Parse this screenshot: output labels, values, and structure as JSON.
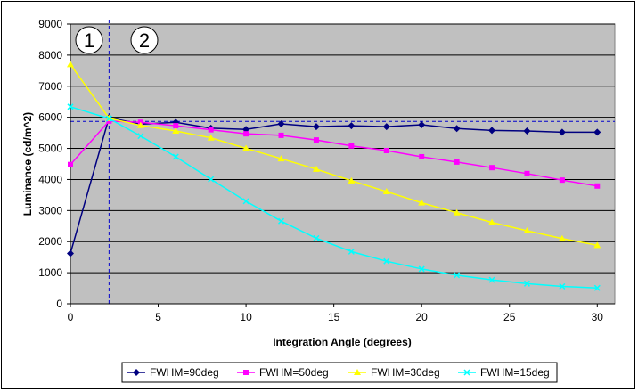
{
  "chart_data": {
    "type": "line",
    "title": "",
    "xlabel": "Integration Angle (degrees)",
    "ylabel": "Luminance (cd/m^2)",
    "xlim": [
      0,
      31
    ],
    "ylim": [
      0,
      9000
    ],
    "xticks": [
      0,
      5,
      10,
      15,
      20,
      25,
      30
    ],
    "yticks": [
      0,
      1000,
      2000,
      3000,
      4000,
      5000,
      6000,
      7000,
      8000,
      9000
    ],
    "grid": "horizontal",
    "plot_background": "#c0c0c0",
    "legend_position": "bottom",
    "reference_lines": {
      "vertical_x": 2.2,
      "horizontal_y": 5870,
      "color": "#0000cc"
    },
    "annotations": [
      "1",
      "2"
    ],
    "series": [
      {
        "name": "FWHM=90deg",
        "color": "#000080",
        "marker": "diamond",
        "x": [
          0,
          2.2,
          4,
          6,
          8,
          10,
          12,
          14,
          16,
          18,
          20,
          22,
          24,
          26,
          28,
          30
        ],
        "values": [
          1620,
          5990,
          5780,
          5840,
          5650,
          5610,
          5790,
          5700,
          5730,
          5700,
          5760,
          5640,
          5580,
          5560,
          5520,
          5520
        ]
      },
      {
        "name": "FWHM=50deg",
        "color": "#ff00ff",
        "marker": "square",
        "x": [
          0,
          2.2,
          4,
          6,
          8,
          10,
          12,
          14,
          16,
          18,
          20,
          22,
          24,
          26,
          28,
          30
        ],
        "values": [
          4480,
          5880,
          5840,
          5730,
          5600,
          5470,
          5420,
          5270,
          5080,
          4930,
          4730,
          4560,
          4380,
          4190,
          3980,
          3790
        ]
      },
      {
        "name": "FWHM=30deg",
        "color": "#ffff00",
        "marker": "triangle",
        "x": [
          0,
          2.2,
          4,
          6,
          8,
          10,
          12,
          14,
          16,
          18,
          20,
          22,
          24,
          26,
          28,
          30
        ],
        "values": [
          7700,
          5970,
          5740,
          5560,
          5340,
          5000,
          4670,
          4330,
          3960,
          3610,
          3250,
          2930,
          2620,
          2350,
          2100,
          1880
        ]
      },
      {
        "name": "FWHM=15deg",
        "color": "#00ffff",
        "marker": "x",
        "x": [
          0,
          2.2,
          4,
          6,
          8,
          10,
          12,
          14,
          16,
          18,
          20,
          22,
          24,
          26,
          28,
          30
        ],
        "values": [
          6340,
          5960,
          5400,
          4730,
          4010,
          3300,
          2660,
          2110,
          1680,
          1370,
          1120,
          920,
          770,
          650,
          560,
          510
        ]
      }
    ]
  }
}
